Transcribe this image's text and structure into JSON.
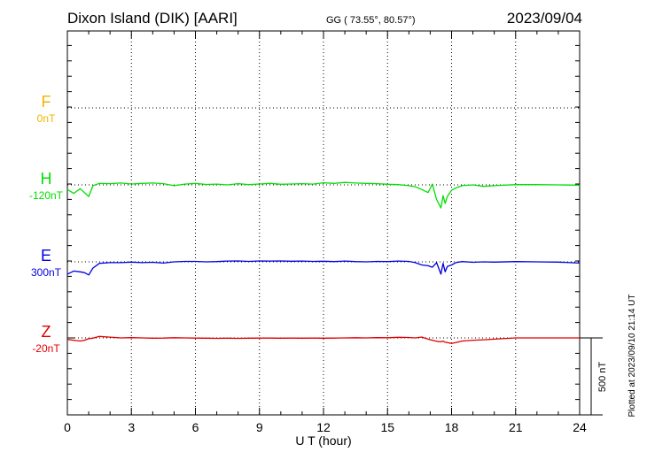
{
  "header": {
    "station": "Dixon Island (DIK)  [AARI]",
    "coords": "GG ( 73.55°,  80.57°)",
    "date": "2023/09/04"
  },
  "plot_note": "Plotted at 2023/09/10 21:14 UT",
  "scale_label": "500 nT",
  "chart_data": {
    "type": "line",
    "xlabel": "U T (hour)",
    "xlim": [
      0,
      24
    ],
    "xticks": [
      "0",
      "3",
      "6",
      "9",
      "12",
      "15",
      "18",
      "21",
      "24"
    ],
    "scale_nT": 500,
    "components": [
      {
        "name": "F",
        "baseline": "0nT",
        "color": "#f0b400",
        "points": []
      },
      {
        "name": "H",
        "baseline": "-120nT",
        "color": "#00e000",
        "points": [
          [
            0,
            -30
          ],
          [
            0.3,
            -55
          ],
          [
            0.6,
            -25
          ],
          [
            0.8,
            -50
          ],
          [
            1.0,
            -75
          ],
          [
            1.2,
            -5
          ],
          [
            1.5,
            10
          ],
          [
            2,
            8
          ],
          [
            2.5,
            12
          ],
          [
            3,
            6
          ],
          [
            3.5,
            10
          ],
          [
            4,
            12
          ],
          [
            4.5,
            8
          ],
          [
            5,
            -5
          ],
          [
            5.5,
            5
          ],
          [
            6,
            10
          ],
          [
            6.5,
            3
          ],
          [
            7,
            5
          ],
          [
            7.5,
            0
          ],
          [
            8,
            8
          ],
          [
            8.5,
            2
          ],
          [
            9,
            6
          ],
          [
            9.5,
            10
          ],
          [
            10,
            4
          ],
          [
            10.5,
            6
          ],
          [
            11,
            8
          ],
          [
            11.5,
            5
          ],
          [
            12,
            14
          ],
          [
            12.5,
            10
          ],
          [
            13,
            16
          ],
          [
            13.5,
            12
          ],
          [
            14,
            10
          ],
          [
            14.5,
            8
          ],
          [
            15,
            4
          ],
          [
            15.5,
            2
          ],
          [
            16,
            -5
          ],
          [
            16.3,
            -12
          ],
          [
            16.6,
            -30
          ],
          [
            16.9,
            -50
          ],
          [
            17.1,
            5
          ],
          [
            17.3,
            -95
          ],
          [
            17.5,
            -150
          ],
          [
            17.6,
            -70
          ],
          [
            17.7,
            -120
          ],
          [
            17.8,
            -75
          ],
          [
            18.0,
            -35
          ],
          [
            18.2,
            -20
          ],
          [
            18.5,
            -5
          ],
          [
            19,
            0
          ],
          [
            19.5,
            -10
          ],
          [
            20,
            -5
          ],
          [
            21,
            2
          ],
          [
            22,
            2
          ],
          [
            23,
            0
          ],
          [
            24,
            -2
          ]
        ]
      },
      {
        "name": "E",
        "baseline": "300nT",
        "color": "#0000e0",
        "points": [
          [
            0,
            -80
          ],
          [
            0.3,
            -60
          ],
          [
            0.6,
            -65
          ],
          [
            0.8,
            -70
          ],
          [
            1.0,
            -85
          ],
          [
            1.2,
            -40
          ],
          [
            1.5,
            -10
          ],
          [
            2,
            -5
          ],
          [
            2.5,
            -5
          ],
          [
            3,
            -2
          ],
          [
            3.5,
            -5
          ],
          [
            4,
            -3
          ],
          [
            4.5,
            -8
          ],
          [
            5,
            0
          ],
          [
            5.5,
            3
          ],
          [
            6,
            3
          ],
          [
            6.5,
            0
          ],
          [
            7,
            2
          ],
          [
            7.5,
            5
          ],
          [
            8,
            6
          ],
          [
            8.5,
            3
          ],
          [
            9,
            6
          ],
          [
            9.5,
            5
          ],
          [
            10,
            6
          ],
          [
            10.5,
            4
          ],
          [
            11,
            5
          ],
          [
            11.5,
            3
          ],
          [
            12,
            4
          ],
          [
            12.5,
            2
          ],
          [
            13,
            5
          ],
          [
            13.5,
            2
          ],
          [
            14,
            0
          ],
          [
            14.5,
            3
          ],
          [
            15,
            2
          ],
          [
            15.5,
            5
          ],
          [
            16,
            3
          ],
          [
            16.3,
            -5
          ],
          [
            16.6,
            -20
          ],
          [
            16.9,
            -25
          ],
          [
            17.1,
            -35
          ],
          [
            17.3,
            -5
          ],
          [
            17.5,
            -80
          ],
          [
            17.6,
            -10
          ],
          [
            17.7,
            -65
          ],
          [
            17.8,
            -30
          ],
          [
            18.0,
            -20
          ],
          [
            18.2,
            -5
          ],
          [
            18.5,
            2
          ],
          [
            19,
            -3
          ],
          [
            19.5,
            0
          ],
          [
            20,
            -2
          ],
          [
            21,
            2
          ],
          [
            22,
            0
          ],
          [
            23,
            -2
          ],
          [
            24,
            -8
          ]
        ]
      },
      {
        "name": "Z",
        "baseline": "-20nT",
        "color": "#e00000",
        "points": [
          [
            0,
            -10
          ],
          [
            0.3,
            -15
          ],
          [
            0.6,
            -20
          ],
          [
            0.8,
            -15
          ],
          [
            1.0,
            -5
          ],
          [
            1.2,
            -2
          ],
          [
            1.5,
            10
          ],
          [
            2,
            5
          ],
          [
            2.5,
            0
          ],
          [
            3,
            2
          ],
          [
            3.5,
            0
          ],
          [
            4,
            -2
          ],
          [
            4.5,
            -1
          ],
          [
            5,
            1
          ],
          [
            5.5,
            0
          ],
          [
            6,
            -1
          ],
          [
            6.5,
            -2
          ],
          [
            7,
            -3
          ],
          [
            7.5,
            -2
          ],
          [
            8,
            -3
          ],
          [
            8.5,
            -2
          ],
          [
            9,
            -1
          ],
          [
            9.5,
            -1
          ],
          [
            10,
            -2
          ],
          [
            10.5,
            -1
          ],
          [
            11,
            -2
          ],
          [
            11.5,
            -1
          ],
          [
            12,
            -2
          ],
          [
            12.5,
            -1
          ],
          [
            13,
            0
          ],
          [
            13.5,
            1
          ],
          [
            14,
            0
          ],
          [
            14.5,
            2
          ],
          [
            15,
            1
          ],
          [
            15.5,
            4
          ],
          [
            16,
            3
          ],
          [
            16.3,
            0
          ],
          [
            16.6,
            6
          ],
          [
            16.9,
            -8
          ],
          [
            17.1,
            -15
          ],
          [
            17.3,
            -22
          ],
          [
            17.5,
            -25
          ],
          [
            17.6,
            -20
          ],
          [
            17.7,
            -28
          ],
          [
            17.8,
            -30
          ],
          [
            18.0,
            -36
          ],
          [
            18.2,
            -30
          ],
          [
            18.5,
            -20
          ],
          [
            19,
            -15
          ],
          [
            19.5,
            -12
          ],
          [
            20,
            -8
          ],
          [
            21,
            0
          ],
          [
            22,
            0
          ],
          [
            23,
            0
          ],
          [
            24,
            0
          ]
        ]
      }
    ]
  }
}
